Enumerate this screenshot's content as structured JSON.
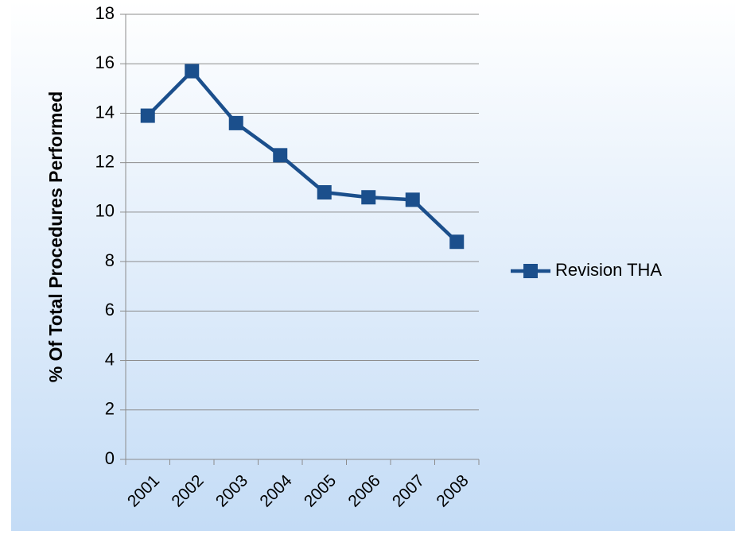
{
  "chart_data": {
    "type": "line",
    "y_label": "% Of Total Procedures Performed",
    "categories": [
      "2001",
      "2002",
      "2003",
      "2004",
      "2005",
      "2006",
      "2007",
      "2008"
    ],
    "series": [
      {
        "name": "Revision THA",
        "color": "#1b4f8c",
        "values": [
          13.9,
          15.7,
          13.6,
          12.3,
          10.8,
          10.6,
          10.5,
          8.8
        ]
      }
    ],
    "ylim": [
      0,
      18
    ],
    "yticks": [
      0,
      2,
      4,
      6,
      8,
      10,
      12,
      14,
      16,
      18
    ],
    "grid": true,
    "legend": "right"
  }
}
